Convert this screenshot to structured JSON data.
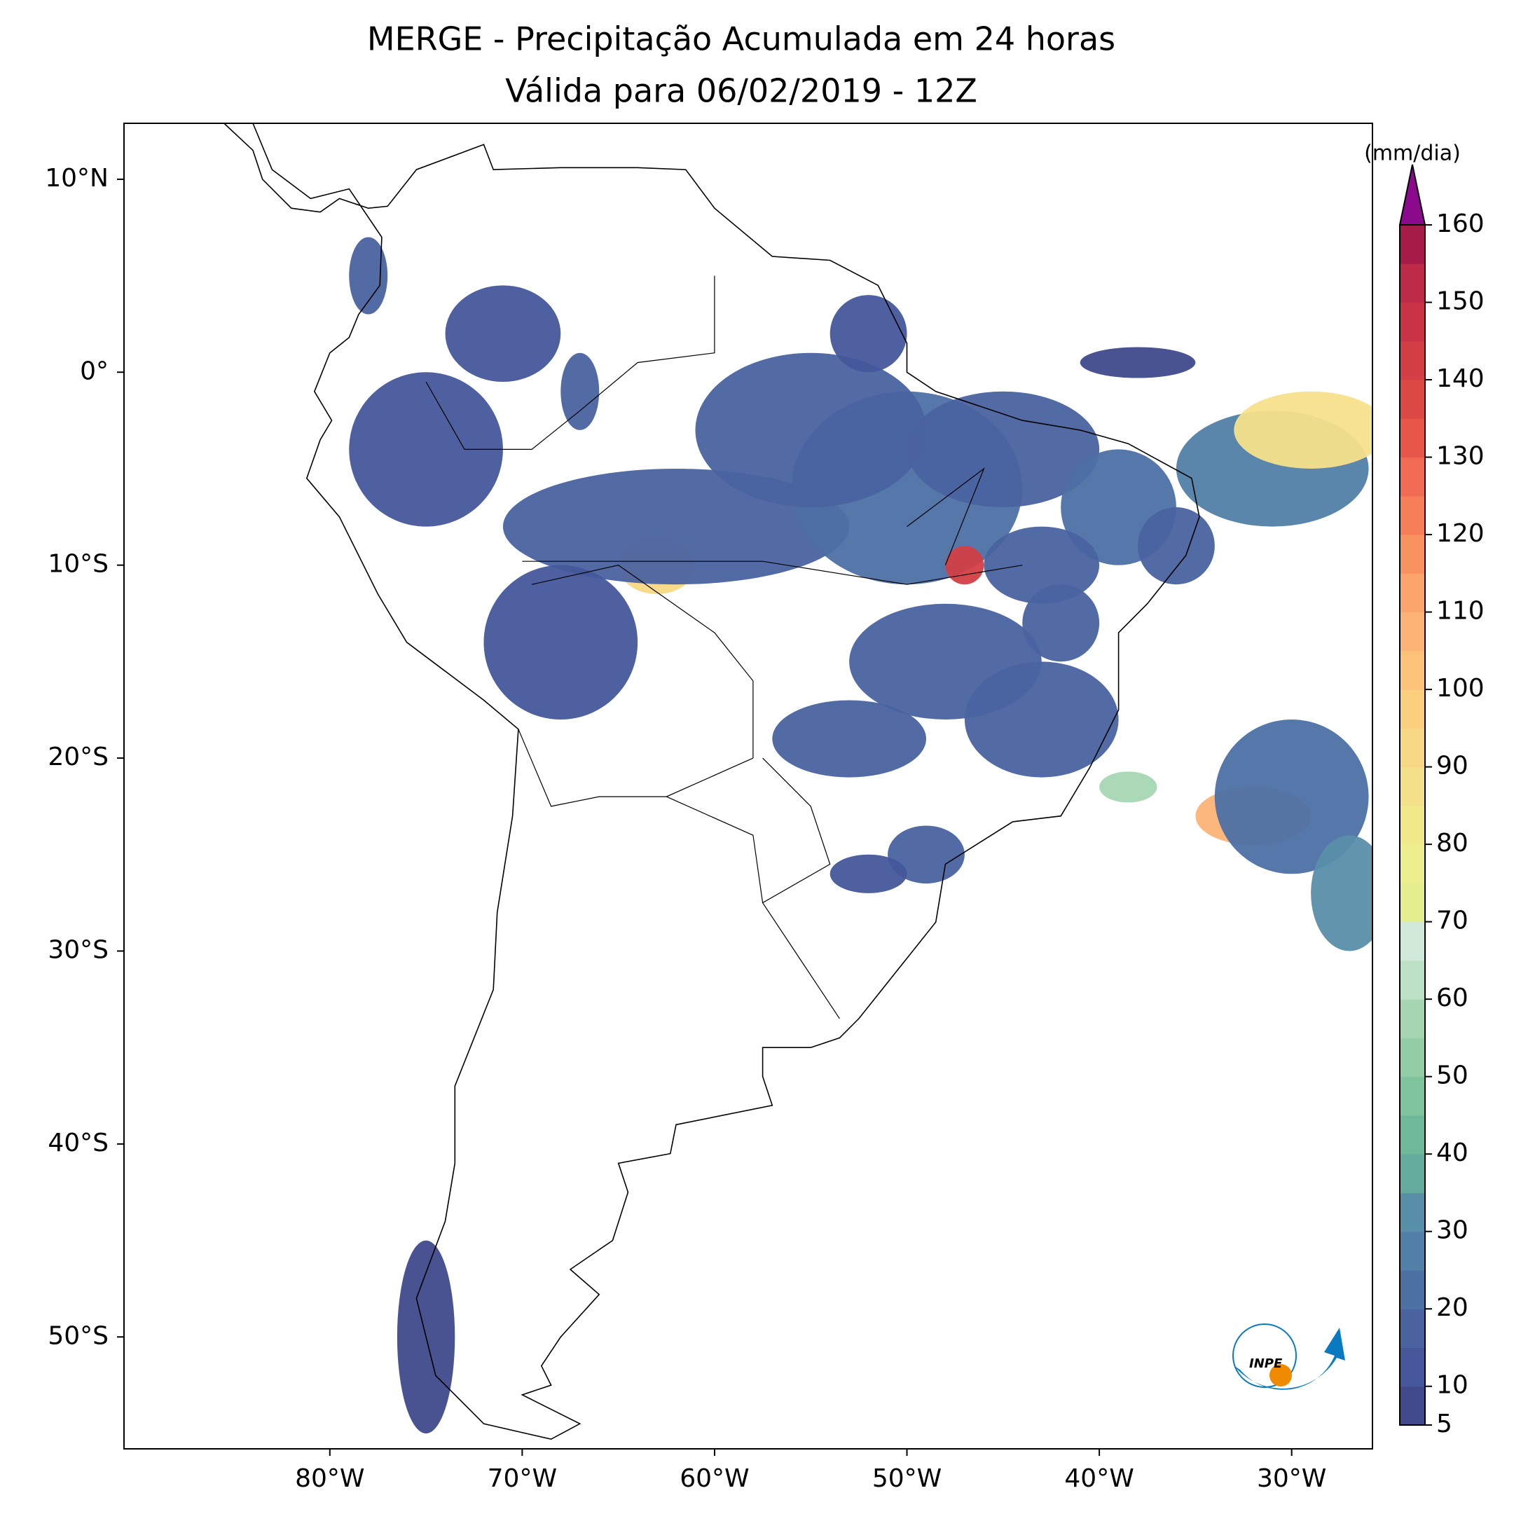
{
  "chart_data": {
    "type": "map",
    "title": "MERGE - Precipitação Acumulada em 24 horas",
    "subtitle": "Válida para 06/02/2019 - 12Z",
    "xlim": [
      -90.7,
      -25.8
    ],
    "ylim": [
      -55.8,
      12.9
    ],
    "xticks": [
      {
        "value": -80,
        "label": "80°W"
      },
      {
        "value": -70,
        "label": "70°W"
      },
      {
        "value": -60,
        "label": "60°W"
      },
      {
        "value": -50,
        "label": "50°W"
      },
      {
        "value": -40,
        "label": "40°W"
      },
      {
        "value": -30,
        "label": "30°W"
      }
    ],
    "yticks": [
      {
        "value": 10,
        "label": "10°N"
      },
      {
        "value": 0,
        "label": "0°"
      },
      {
        "value": -10,
        "label": "10°S"
      },
      {
        "value": -20,
        "label": "20°S"
      },
      {
        "value": -30,
        "label": "30°S"
      },
      {
        "value": -40,
        "label": "40°S"
      },
      {
        "value": -50,
        "label": "50°S"
      }
    ],
    "colorbar": {
      "label": "(mm/dia)",
      "ticks": [
        5,
        10,
        20,
        30,
        40,
        50,
        60,
        70,
        80,
        90,
        100,
        110,
        120,
        130,
        140,
        150,
        160
      ],
      "colors": [
        "#404a8b",
        "#45579a",
        "#4a63a0",
        "#4d70a5",
        "#5280a8",
        "#5a8fa9",
        "#64ab9e",
        "#6db99a",
        "#7fc49d",
        "#93cda6",
        "#a6d6b2",
        "#bde1c4",
        "#d1e9d9",
        "#e5ee8f",
        "#edee8e",
        "#f2e98b",
        "#f5e08a",
        "#f8d885",
        "#fbcf7e",
        "#fcc27a",
        "#fcb375",
        "#fba46b",
        "#f99261",
        "#f67f59",
        "#f06b51",
        "#e65749",
        "#dc4944",
        "#d33f44",
        "#c93346",
        "#bc2a48",
        "#a51c49"
      ],
      "extend_color": "#8b0a8b"
    },
    "logo_text": "INPE"
  }
}
